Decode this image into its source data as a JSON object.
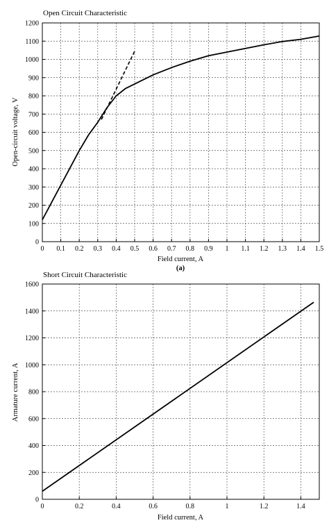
{
  "chart_data": [
    {
      "type": "line",
      "title": "Open Circuit Characteristic",
      "xlabel": "Field current, A",
      "ylabel": "Open-circuit voltage, V",
      "caption": "(a)",
      "xlim": [
        0,
        1.5
      ],
      "ylim": [
        0,
        1200
      ],
      "xticks": [
        "0",
        "0.1",
        "0.2",
        "0.3",
        "0.4",
        "0.5",
        "0.6",
        "0.7",
        "0.8",
        "0.9",
        "1",
        "1.1",
        "1.2",
        "1.3",
        "1.4",
        "1.5"
      ],
      "yticks": [
        "0",
        "100",
        "200",
        "300",
        "400",
        "500",
        "600",
        "700",
        "800",
        "900",
        "1000",
        "1100",
        "1200"
      ],
      "grid": true,
      "series": [
        {
          "style": "solid",
          "x": [
            0,
            0.05,
            0.1,
            0.15,
            0.2,
            0.25,
            0.3,
            0.35,
            0.4,
            0.45,
            0.5,
            0.6,
            0.7,
            0.8,
            0.9,
            1.0,
            1.1,
            1.2,
            1.3,
            1.4,
            1.5
          ],
          "y": [
            120,
            215,
            310,
            405,
            500,
            585,
            655,
            735,
            800,
            840,
            865,
            915,
            955,
            990,
            1020,
            1040,
            1060,
            1080,
            1098,
            1110,
            1128
          ]
        },
        {
          "style": "dashed",
          "x": [
            0.32,
            0.5
          ],
          "y": [
            670,
            1045
          ]
        }
      ]
    },
    {
      "type": "line",
      "title": "Short Circuit Characteristic",
      "xlabel": "Field current, A",
      "ylabel": "Armature current, A",
      "xlim": [
        0,
        1.5
      ],
      "ylim": [
        0,
        1600
      ],
      "xticks": [
        "0",
        "0.2",
        "0.4",
        "0.6",
        "0.8",
        "1",
        "1.2",
        "1.4"
      ],
      "yticks": [
        "0",
        "200",
        "400",
        "600",
        "800",
        "1000",
        "1200",
        "1400",
        "1600"
      ],
      "grid": true,
      "series": [
        {
          "style": "solid",
          "x": [
            0,
            1.47
          ],
          "y": [
            60,
            1465
          ]
        }
      ]
    }
  ]
}
